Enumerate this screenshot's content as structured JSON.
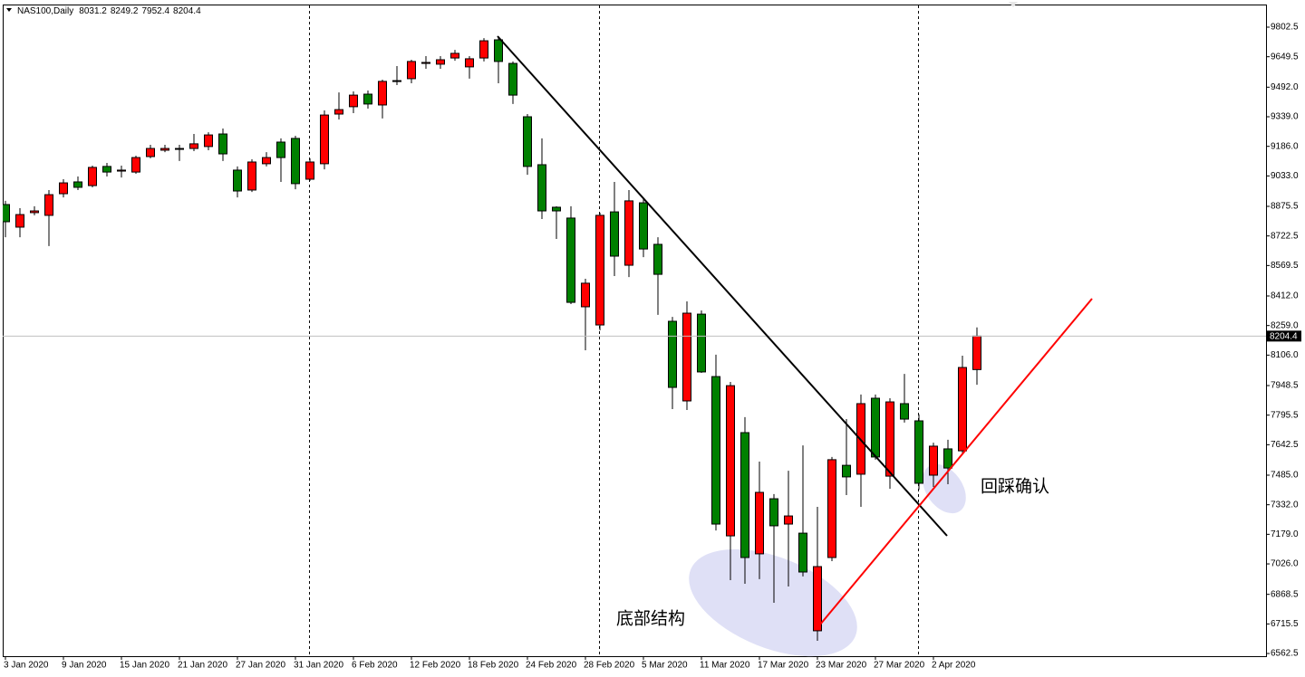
{
  "chart_data": {
    "type": "candlestick",
    "title": "NAS100,Daily",
    "categories": [
      "3 Jan 2020",
      null,
      null,
      null,
      "9 Jan 2020",
      null,
      null,
      null,
      "15 Jan 2020",
      null,
      null,
      null,
      "21 Jan 2020",
      null,
      null,
      null,
      "27 Jan 2020",
      null,
      null,
      null,
      "31 Jan 2020",
      null,
      null,
      null,
      "6 Feb 2020",
      null,
      null,
      null,
      "12 Feb 2020",
      null,
      null,
      null,
      "18 Feb 2020",
      null,
      null,
      null,
      "24 Feb 2020",
      null,
      null,
      null,
      "28 Feb 2020",
      null,
      null,
      null,
      "5 Mar 2020",
      null,
      null,
      null,
      "11 Mar 2020",
      null,
      null,
      null,
      "17 Mar 2020",
      null,
      null,
      null,
      "23 Mar 2020",
      null,
      null,
      null,
      "27 Mar 2020",
      null,
      null,
      null,
      "2 Apr 2020",
      null,
      null,
      null
    ],
    "open": [
      8885,
      8768,
      8843,
      8829,
      8941,
      9002,
      8983,
      9082,
      9058,
      9053,
      9133,
      9166,
      9171,
      9175,
      9185,
      9250,
      9063,
      8960,
      9096,
      9208,
      9227,
      9016,
      9096,
      9353,
      9391,
      9456,
      9400,
      9522,
      9536,
      9615,
      9611,
      9643,
      9597,
      9643,
      9737,
      9615,
      9339,
      9091,
      8871,
      8815,
      8356,
      8262,
      8847,
      8571,
      8894,
      8679,
      8281,
      7869,
      8318,
      7995,
      7171,
      7705,
      7078,
      7363,
      7232,
      7185,
      6680,
      7059,
      7536,
      7490,
      7883,
      7480,
      7855,
      7766,
      7485,
      7621,
      7611,
      8031.2
    ],
    "high": [
      8904,
      8866,
      8876,
      8960,
      9016,
      9030,
      9086,
      9100,
      9086,
      9138,
      9194,
      9194,
      9194,
      9250,
      9259,
      9278,
      9082,
      9119,
      9156,
      9227,
      9241,
      9124,
      9372,
      9465,
      9470,
      9475,
      9531,
      9601,
      9634,
      9653,
      9653,
      9685,
      9653,
      9746,
      9756,
      9625,
      9353,
      9227,
      8876,
      8876,
      8501,
      8843,
      9002,
      8960,
      8922,
      8716,
      8304,
      8384,
      8337,
      8108,
      7967,
      7785,
      7555,
      7387,
      7508,
      7639,
      7321,
      7579,
      7775,
      7902,
      7902,
      7883,
      8009,
      7799,
      7653,
      7668,
      8103,
      8249.2
    ],
    "low": [
      8716,
      8716,
      8829,
      8670,
      8922,
      8960,
      8974,
      9030,
      9025,
      9044,
      9124,
      9156,
      9110,
      9161,
      9166,
      9110,
      8922,
      8950,
      9082,
      9002,
      8964,
      9007,
      9067,
      9325,
      9358,
      9381,
      9330,
      9503,
      9512,
      9587,
      9587,
      9629,
      9536,
      9625,
      9512,
      9405,
      9039,
      8810,
      8707,
      8370,
      8131,
      8234,
      8515,
      8510,
      8613,
      8314,
      7827,
      7822,
      8014,
      7199,
      6942,
      6923,
      6947,
      6825,
      6909,
      6961,
      6628,
      7040,
      7382,
      7321,
      7565,
      7415,
      7757,
      7410,
      7424,
      7438,
      7593,
      7952.4
    ],
    "close": [
      8796,
      8833,
      8852,
      8936,
      8997,
      8974,
      9077,
      9053,
      9063,
      9128,
      9175,
      9175,
      9175,
      9199,
      9245,
      9147,
      8955,
      9105,
      9128,
      9128,
      8993,
      9105,
      9348,
      9376,
      9451,
      9405,
      9522,
      9526,
      9625,
      9620,
      9634,
      9667,
      9639,
      9732,
      9625,
      9451,
      9082,
      8852,
      8852,
      8379,
      8478,
      8829,
      8618,
      8904,
      8655,
      8524,
      7939,
      8323,
      8019,
      7232,
      7948,
      7059,
      7396,
      7223,
      7274,
      6984,
      7012,
      7565,
      7476,
      7855,
      7579,
      7864,
      7775,
      7443,
      7635,
      7522,
      8042,
      8204.4
    ],
    "up_color": "#ff0000",
    "down_color": "#008000",
    "ylim": [
      6548.6,
      9919.6
    ],
    "yticks": [
      9802.5,
      9649.5,
      {
        "value": 9492,
        "label": "9492.0"
      },
      {
        "value": 9339,
        "label": "9339.0"
      },
      {
        "value": 9186,
        "label": "9186.0"
      },
      {
        "value": 9033,
        "label": "9033.0"
      },
      8875.5,
      8722.5,
      8569.5,
      {
        "value": 8412,
        "label": "8412.0"
      },
      {
        "value": 8259,
        "label": "8259.0"
      },
      {
        "value": 8106,
        "label": "8106.0"
      },
      7948.5,
      7795.5,
      7642.5,
      {
        "value": 7485,
        "label": "7485.0"
      },
      {
        "value": 7332,
        "label": "7332.0"
      },
      {
        "value": 7179,
        "label": "7179.0"
      },
      {
        "value": 7026,
        "label": "7026.0"
      },
      6868.5,
      6715.5,
      6562.5
    ],
    "grid": false,
    "annotations": [
      "底部结构",
      "回踩确认"
    ]
  }
}
